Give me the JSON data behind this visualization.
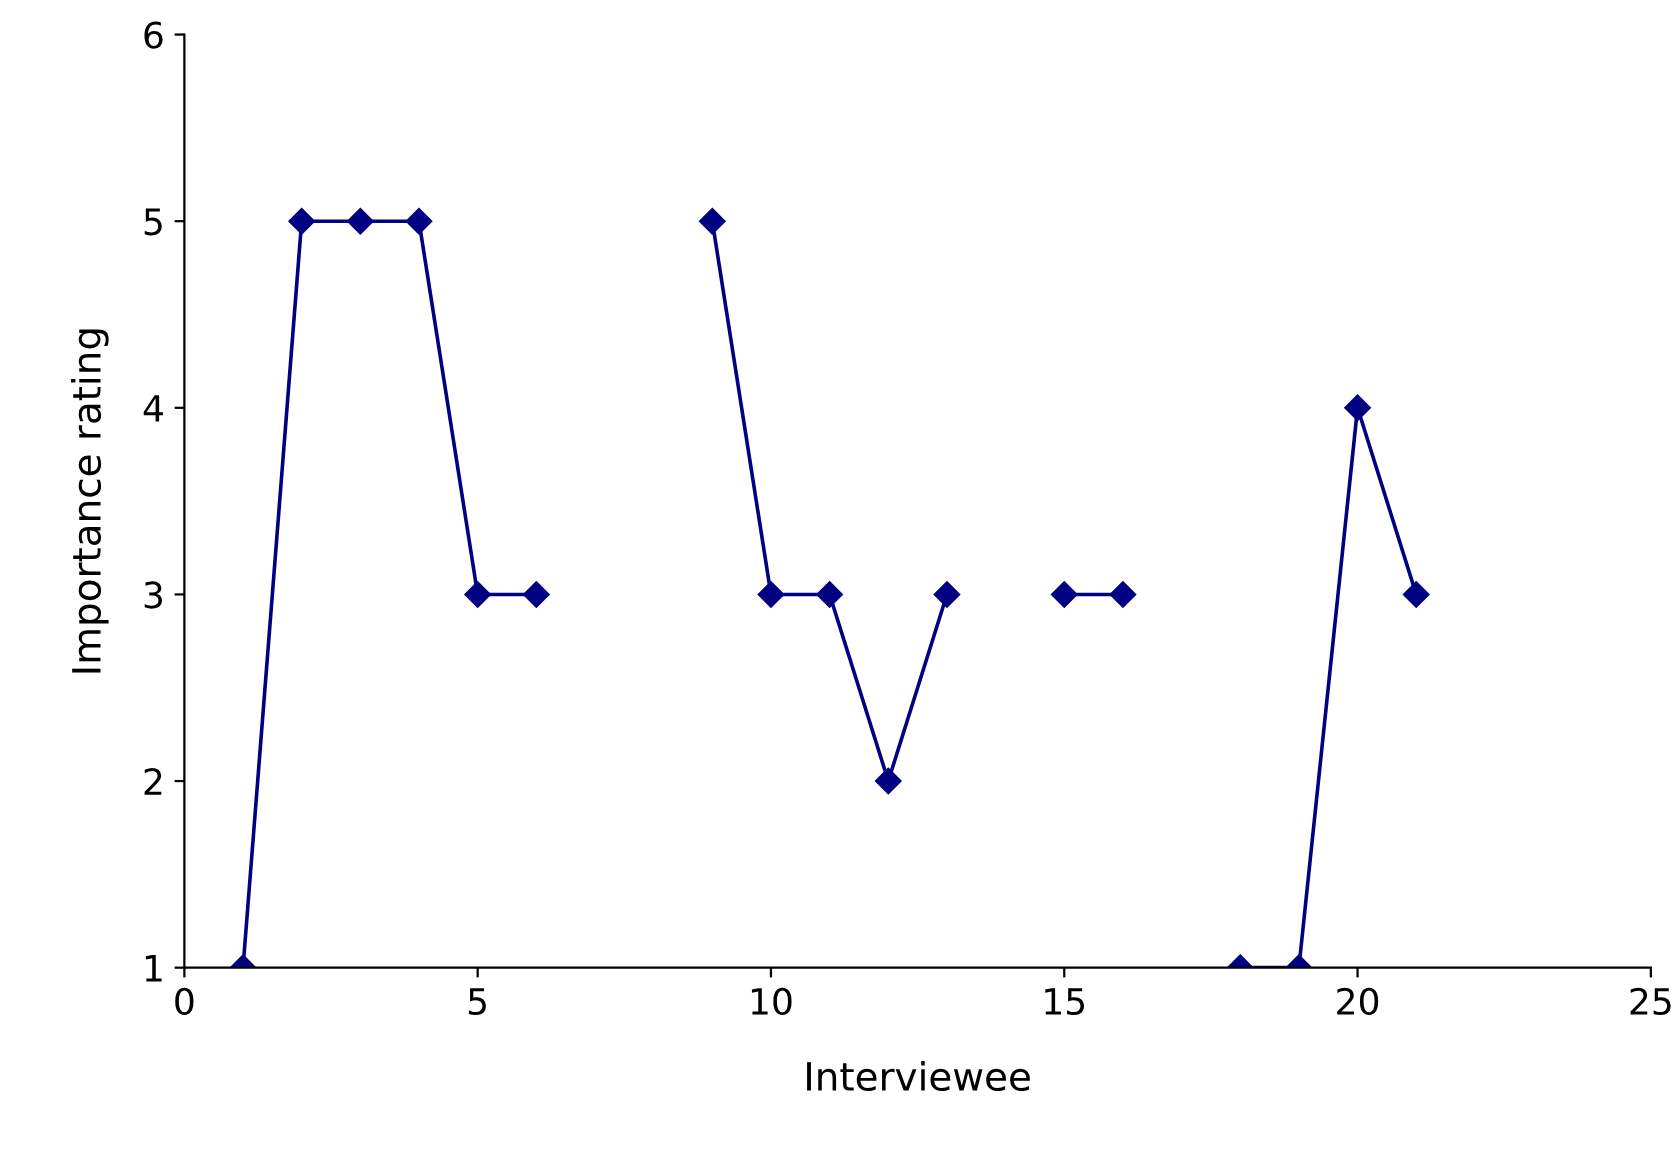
{
  "chart_data": {
    "type": "line",
    "xlabel": "Interviewee",
    "ylabel": "Importance rating",
    "series": [
      {
        "color": "#000080",
        "x": [
          1,
          2,
          3,
          4,
          5,
          6,
          7,
          8,
          9,
          10,
          11,
          12,
          13,
          14,
          15,
          16,
          17,
          18,
          19,
          20,
          21
        ],
        "values": [
          1,
          5,
          5,
          5,
          3,
          3,
          null,
          null,
          5,
          3,
          3,
          2,
          3,
          null,
          3,
          3,
          null,
          1,
          1,
          4,
          3
        ]
      }
    ],
    "xlim": [
      0,
      25
    ],
    "xticks": [
      0,
      5,
      10,
      15,
      20,
      25
    ],
    "ylim": [
      1,
      6
    ],
    "yticks": [
      1,
      2,
      3,
      4,
      5,
      6
    ],
    "grid": false,
    "marker": "diamond",
    "line_style": "solid"
  }
}
